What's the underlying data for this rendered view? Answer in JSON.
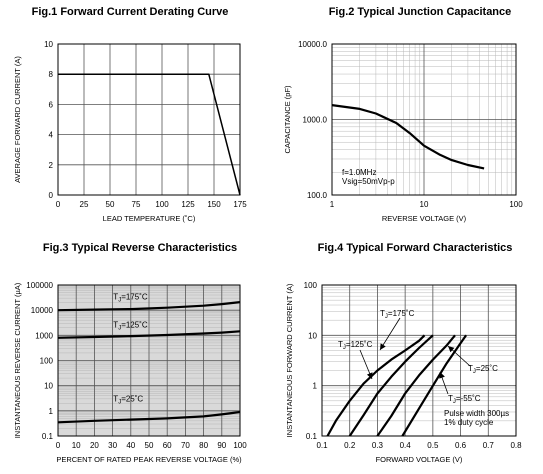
{
  "figures": [
    {
      "title": "Fig.1 Forward Current Derating Curve",
      "chart_data": {
        "type": "line",
        "xlabel": "LEAD TEMPERATURE (˚C)",
        "ylabel": "AVERAGE FORWARD CURRENT (A)",
        "xlim": [
          0,
          175
        ],
        "ylim": [
          0,
          10
        ],
        "xticks": [
          0,
          25,
          50,
          75,
          100,
          125,
          150,
          175
        ],
        "yticks": [
          0,
          2,
          4,
          6,
          8,
          10
        ],
        "grid": true,
        "series": [
          {
            "x": [
              0,
              145,
              175
            ],
            "y": [
              8,
              8,
              0
            ]
          }
        ]
      }
    },
    {
      "title": "Fig.2 Typical Junction Capacitance",
      "chart_data": {
        "type": "line",
        "xlabel": "REVERSE VOLTAGE (V)",
        "ylabel": "CAPACITANCE (pF)",
        "xscale": "log",
        "yscale": "log",
        "xlim": [
          1,
          100
        ],
        "ylim": [
          100,
          10000
        ],
        "xticks": [
          1,
          10,
          100
        ],
        "xtick_labels": [
          "1",
          "10",
          "100"
        ],
        "yticks": [
          100,
          1000,
          10000
        ],
        "ytick_labels": [
          "100.0",
          "1000.0",
          "10000.0"
        ],
        "grid": true,
        "annotations": [
          "f=1.0MHz",
          "Vsig=50mVp-p"
        ],
        "series": [
          {
            "x": [
              1,
              2,
              3,
              5,
              7,
              10,
              15,
              20,
              30,
              45
            ],
            "y": [
              1550,
              1380,
              1200,
              900,
              660,
              450,
              340,
              290,
              250,
              225
            ]
          }
        ]
      }
    },
    {
      "title": "Fig.3 Typical Reverse Characteristics",
      "chart_data": {
        "type": "line",
        "xlabel": "PERCENT OF RATED PEAK REVERSE VOLTAGE (%)",
        "ylabel": "INSTANTANEOUS REVERSE CURRENT (µA)",
        "yscale": "log",
        "xlim": [
          0,
          100
        ],
        "ylim": [
          0.1,
          100000
        ],
        "xticks": [
          0,
          10,
          20,
          30,
          40,
          50,
          60,
          70,
          80,
          90,
          100
        ],
        "yticks": [
          0.1,
          1,
          10,
          100,
          1000,
          10000,
          100000
        ],
        "ytick_labels": [
          "0.1",
          "1",
          "10",
          "100",
          "1000",
          "10000",
          "100000"
        ],
        "grid": true,
        "series": [
          {
            "name": "TJ=175˚C",
            "label_main": "T",
            "label_sub": "J",
            "label_tail": "=175˚C",
            "x": [
              0,
              20,
              40,
              60,
              80,
              90,
              100
            ],
            "y": [
              10000,
              10500,
              11000,
              12500,
              15000,
              17500,
              21000
            ]
          },
          {
            "name": "TJ=125˚C",
            "label_main": "T",
            "label_sub": "J",
            "label_tail": "=125˚C",
            "x": [
              0,
              20,
              40,
              60,
              80,
              90,
              100
            ],
            "y": [
              800,
              860,
              930,
              1030,
              1180,
              1280,
              1450
            ]
          },
          {
            "name": "TJ=25˚C",
            "label_main": "T",
            "label_sub": "J",
            "label_tail": "=25˚C",
            "x": [
              0,
              20,
              40,
              60,
              80,
              90,
              100
            ],
            "y": [
              0.35,
              0.4,
              0.45,
              0.5,
              0.6,
              0.72,
              0.9
            ]
          }
        ]
      }
    },
    {
      "title": "Fig.4 Typical Forward Characteristics",
      "chart_data": {
        "type": "line",
        "xlabel": "FORWARD VOLTAGE (V)",
        "ylabel": "INSTANTANEOUS FORWARD CURRENT (A)",
        "yscale": "log",
        "xlim": [
          0.1,
          0.8
        ],
        "ylim": [
          0.1,
          100
        ],
        "xticks": [
          0.1,
          0.2,
          0.3,
          0.4,
          0.5,
          0.6,
          0.7,
          0.8
        ],
        "yticks": [
          0.1,
          1,
          10,
          100
        ],
        "ytick_labels": [
          "0.1",
          "1",
          "10",
          "100"
        ],
        "grid": true,
        "annotations": [
          "Pulse width 300µs",
          "1% duty cycle"
        ],
        "series": [
          {
            "name": "TJ=175˚C",
            "label_main": "T",
            "label_sub": "J",
            "label_tail": "=175˚C",
            "x": [
              0.12,
              0.15,
              0.2,
              0.25,
              0.3,
              0.35,
              0.4,
              0.45,
              0.47
            ],
            "y": [
              0.1,
              0.2,
              0.5,
              1.1,
              2.0,
              3.3,
              5.0,
              7.8,
              10
            ]
          },
          {
            "name": "TJ=125˚C",
            "label_main": "T",
            "label_sub": "J",
            "label_tail": "=125˚C",
            "x": [
              0.2,
              0.25,
              0.3,
              0.35,
              0.4,
              0.45,
              0.5
            ],
            "y": [
              0.1,
              0.26,
              0.7,
              1.5,
              3.0,
              5.6,
              10
            ]
          },
          {
            "name": "TJ=25˚C",
            "label_main": "T",
            "label_sub": "J",
            "label_tail": "=25˚C",
            "x": [
              0.3,
              0.35,
              0.4,
              0.45,
              0.5,
              0.55,
              0.58
            ],
            "y": [
              0.1,
              0.25,
              0.7,
              1.6,
              3.3,
              6.3,
              10
            ]
          },
          {
            "name": "TJ=-55˚C",
            "label_main": "T",
            "label_sub": "J",
            "label_tail": "=-55˚C",
            "x": [
              0.39,
              0.45,
              0.5,
              0.55,
              0.6,
              0.62
            ],
            "y": [
              0.1,
              0.35,
              1.0,
              2.8,
              7.0,
              10
            ]
          }
        ]
      }
    }
  ]
}
